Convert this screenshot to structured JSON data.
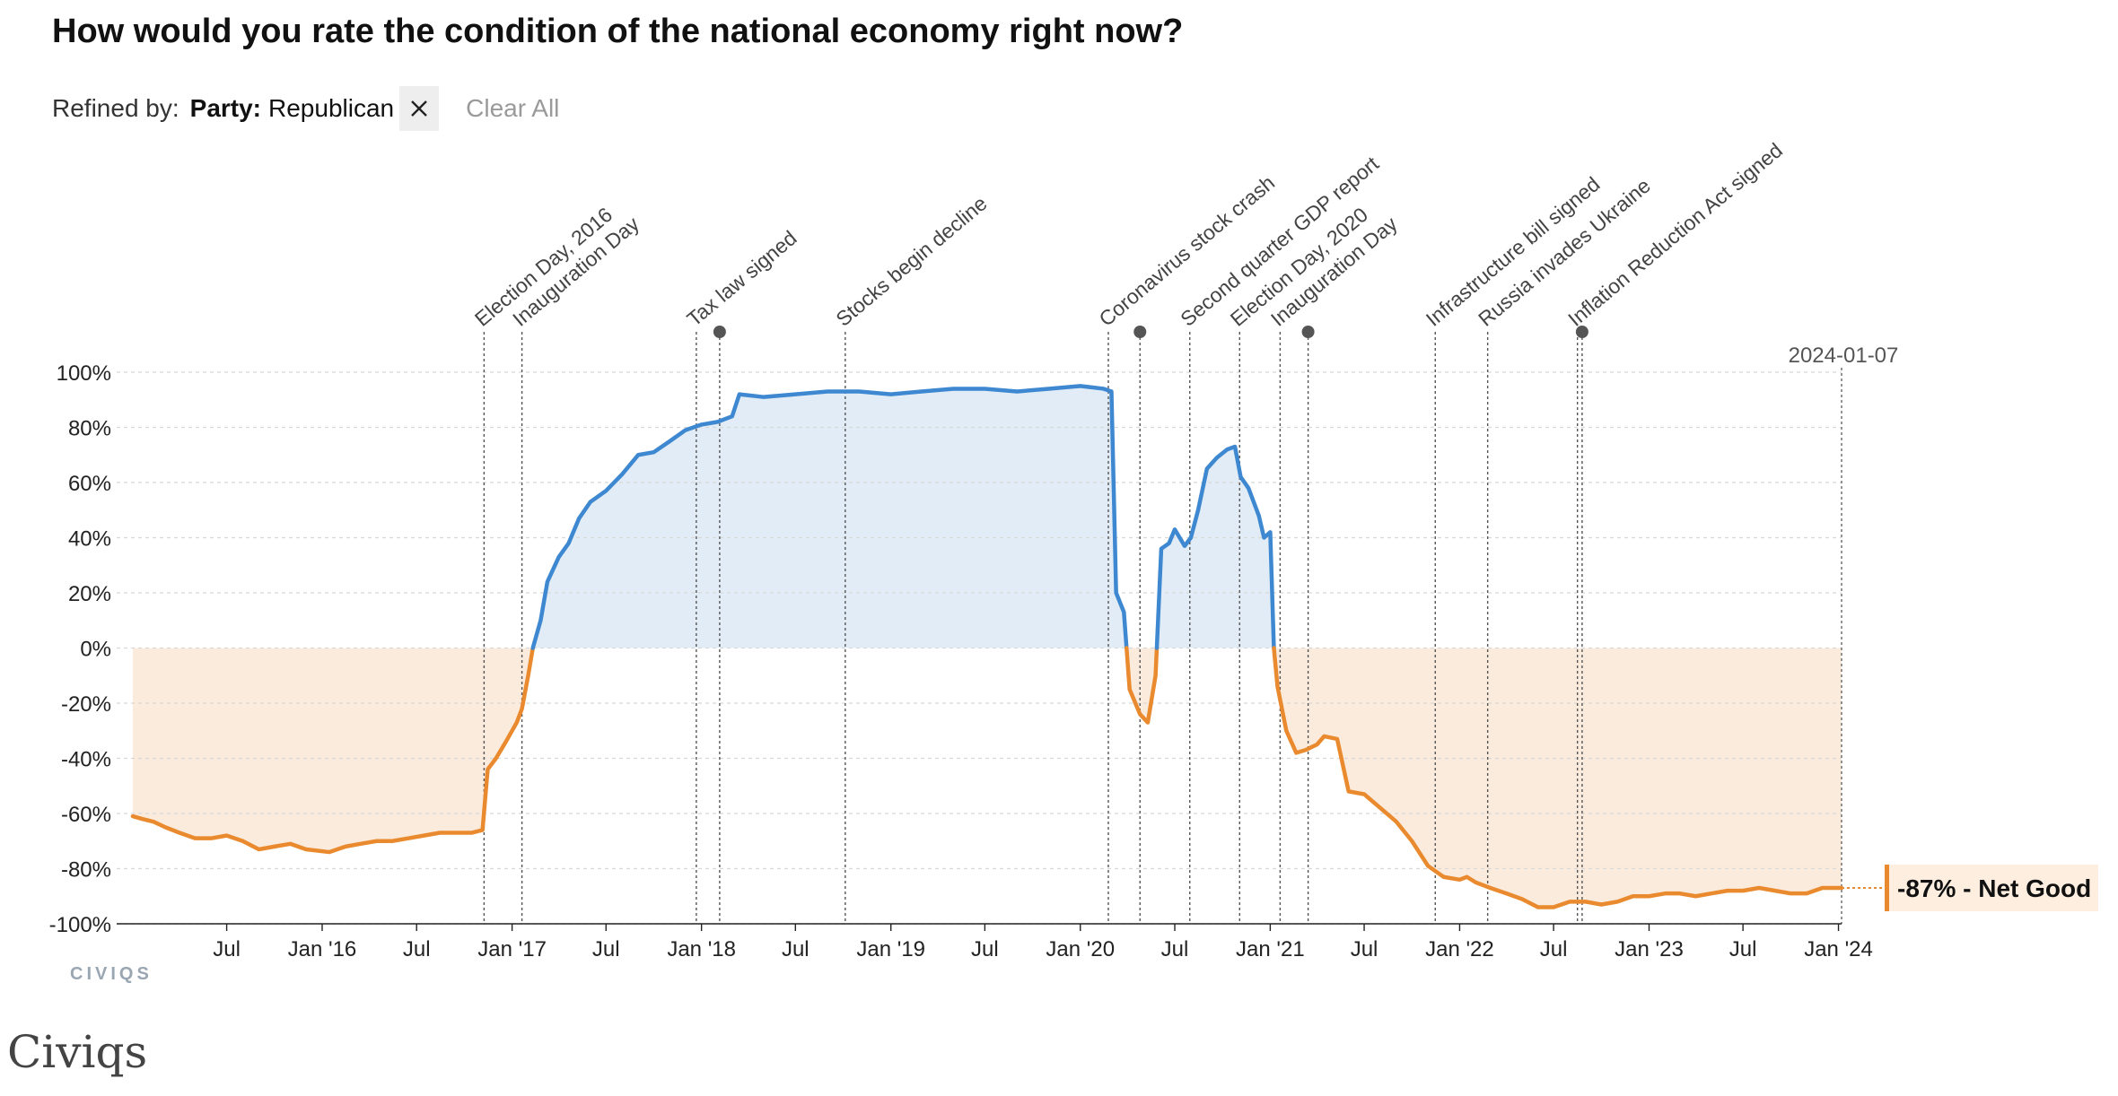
{
  "title": "How would you rate the condition of the national economy right now?",
  "refine": {
    "label": "Refined by:",
    "filter_key": "Party:",
    "filter_value": "Republican",
    "clear_all": "Clear All"
  },
  "watermark": "CIVIQS",
  "footer_source": "Civiqs",
  "colors": {
    "positive": "#3d88d0",
    "negative": "#ea8a2f",
    "positive_fill": "#e2ecf6",
    "negative_fill": "#fbebdd",
    "label_box": "#fdeee0"
  },
  "chart_data": {
    "type": "area",
    "title": "How would you rate the condition of the national economy right now?",
    "series": [
      {
        "name": "Net Good",
        "points": [
          [
            "2015-01-01",
            -61
          ],
          [
            "2015-01-20",
            -62
          ],
          [
            "2015-02-10",
            -63
          ],
          [
            "2015-03-05",
            -65
          ],
          [
            "2015-04-01",
            -67
          ],
          [
            "2015-05-01",
            -69
          ],
          [
            "2015-06-01",
            -69
          ],
          [
            "2015-07-01",
            -68
          ],
          [
            "2015-08-01",
            -70
          ],
          [
            "2015-09-01",
            -73
          ],
          [
            "2015-10-01",
            -72
          ],
          [
            "2015-11-01",
            -71
          ],
          [
            "2015-12-01",
            -73
          ],
          [
            "2016-01-15",
            -74
          ],
          [
            "2016-02-15",
            -72
          ],
          [
            "2016-03-15",
            -71
          ],
          [
            "2016-04-15",
            -70
          ],
          [
            "2016-05-15",
            -70
          ],
          [
            "2016-06-15",
            -69
          ],
          [
            "2016-07-15",
            -68
          ],
          [
            "2016-08-15",
            -67
          ],
          [
            "2016-09-15",
            -67
          ],
          [
            "2016-10-15",
            -67
          ],
          [
            "2016-11-05",
            -66
          ],
          [
            "2016-11-15",
            -44
          ],
          [
            "2016-12-01",
            -40
          ],
          [
            "2016-12-20",
            -34
          ],
          [
            "2017-01-10",
            -27
          ],
          [
            "2017-01-20",
            -22
          ],
          [
            "2017-02-01",
            -10
          ],
          [
            "2017-02-10",
            0
          ],
          [
            "2017-02-25",
            10
          ],
          [
            "2017-03-10",
            24
          ],
          [
            "2017-04-01",
            33
          ],
          [
            "2017-04-20",
            38
          ],
          [
            "2017-05-10",
            47
          ],
          [
            "2017-06-01",
            53
          ],
          [
            "2017-07-01",
            57
          ],
          [
            "2017-08-01",
            63
          ],
          [
            "2017-09-01",
            70
          ],
          [
            "2017-10-01",
            71
          ],
          [
            "2017-11-01",
            75
          ],
          [
            "2017-12-01",
            79
          ],
          [
            "2018-01-01",
            81
          ],
          [
            "2018-02-01",
            82
          ],
          [
            "2018-03-01",
            84
          ],
          [
            "2018-03-15",
            92
          ],
          [
            "2018-05-01",
            91
          ],
          [
            "2018-07-01",
            92
          ],
          [
            "2018-09-01",
            93
          ],
          [
            "2018-11-01",
            93
          ],
          [
            "2019-01-01",
            92
          ],
          [
            "2019-03-01",
            93
          ],
          [
            "2019-05-01",
            94
          ],
          [
            "2019-07-01",
            94
          ],
          [
            "2019-09-01",
            93
          ],
          [
            "2019-11-01",
            94
          ],
          [
            "2020-01-01",
            95
          ],
          [
            "2020-02-15",
            94
          ],
          [
            "2020-03-01",
            93
          ],
          [
            "2020-03-10",
            20
          ],
          [
            "2020-03-25",
            13
          ],
          [
            "2020-04-05",
            -15
          ],
          [
            "2020-04-25",
            -24
          ],
          [
            "2020-05-10",
            -27
          ],
          [
            "2020-05-25",
            -10
          ],
          [
            "2020-06-05",
            36
          ],
          [
            "2020-06-20",
            38
          ],
          [
            "2020-07-01",
            43
          ],
          [
            "2020-07-20",
            37
          ],
          [
            "2020-08-01",
            40
          ],
          [
            "2020-08-15",
            50
          ],
          [
            "2020-09-01",
            65
          ],
          [
            "2020-09-20",
            69
          ],
          [
            "2020-10-10",
            72
          ],
          [
            "2020-10-25",
            73
          ],
          [
            "2020-11-05",
            62
          ],
          [
            "2020-11-20",
            58
          ],
          [
            "2020-12-10",
            48
          ],
          [
            "2020-12-20",
            40
          ],
          [
            "2021-01-01",
            42
          ],
          [
            "2021-01-08",
            0
          ],
          [
            "2021-01-15",
            -14
          ],
          [
            "2021-02-01",
            -30
          ],
          [
            "2021-02-20",
            -38
          ],
          [
            "2021-03-10",
            -37
          ],
          [
            "2021-04-01",
            -35
          ],
          [
            "2021-04-15",
            -32
          ],
          [
            "2021-05-10",
            -33
          ],
          [
            "2021-06-01",
            -52
          ],
          [
            "2021-07-01",
            -53
          ],
          [
            "2021-08-01",
            -58
          ],
          [
            "2021-09-01",
            -63
          ],
          [
            "2021-10-01",
            -70
          ],
          [
            "2021-11-01",
            -79
          ],
          [
            "2021-12-01",
            -83
          ],
          [
            "2022-01-01",
            -84
          ],
          [
            "2022-01-15",
            -83
          ],
          [
            "2022-02-01",
            -85
          ],
          [
            "2022-03-01",
            -87
          ],
          [
            "2022-04-01",
            -89
          ],
          [
            "2022-05-01",
            -91
          ],
          [
            "2022-06-01",
            -94
          ],
          [
            "2022-07-01",
            -94
          ],
          [
            "2022-08-01",
            -92
          ],
          [
            "2022-09-01",
            -92
          ],
          [
            "2022-10-01",
            -93
          ],
          [
            "2022-11-01",
            -92
          ],
          [
            "2022-12-01",
            -90
          ],
          [
            "2023-01-01",
            -90
          ],
          [
            "2023-02-01",
            -89
          ],
          [
            "2023-03-01",
            -89
          ],
          [
            "2023-04-01",
            -90
          ],
          [
            "2023-05-01",
            -89
          ],
          [
            "2023-06-01",
            -88
          ],
          [
            "2023-07-01",
            -88
          ],
          [
            "2023-08-01",
            -87
          ],
          [
            "2023-09-01",
            -88
          ],
          [
            "2023-10-01",
            -89
          ],
          [
            "2023-11-01",
            -89
          ],
          [
            "2023-12-01",
            -87
          ],
          [
            "2024-01-07",
            -87
          ]
        ]
      }
    ],
    "ylim": [
      -100,
      100
    ],
    "yticks": [
      100,
      80,
      60,
      40,
      20,
      0,
      -20,
      -40,
      -60,
      -80,
      -100
    ],
    "ytick_labels": [
      "100%",
      "80%",
      "60%",
      "40%",
      "20%",
      "0%",
      "-20%",
      "-40%",
      "-60%",
      "-80%",
      "-100%"
    ],
    "xlim": [
      "2014-12-01",
      "2024-01-07"
    ],
    "xticks": [
      {
        "date": "2015-07-01",
        "label": "Jul"
      },
      {
        "date": "2016-01-01",
        "label": "Jan '16"
      },
      {
        "date": "2016-07-01",
        "label": "Jul"
      },
      {
        "date": "2017-01-01",
        "label": "Jan '17"
      },
      {
        "date": "2017-07-01",
        "label": "Jul"
      },
      {
        "date": "2018-01-01",
        "label": "Jan '18"
      },
      {
        "date": "2018-07-01",
        "label": "Jul"
      },
      {
        "date": "2019-01-01",
        "label": "Jan '19"
      },
      {
        "date": "2019-07-01",
        "label": "Jul"
      },
      {
        "date": "2020-01-01",
        "label": "Jan '20"
      },
      {
        "date": "2020-07-01",
        "label": "Jul"
      },
      {
        "date": "2021-01-01",
        "label": "Jan '21"
      },
      {
        "date": "2021-07-01",
        "label": "Jul"
      },
      {
        "date": "2022-01-01",
        "label": "Jan '22"
      },
      {
        "date": "2022-07-01",
        "label": "Jul"
      },
      {
        "date": "2023-01-01",
        "label": "Jan '23"
      },
      {
        "date": "2023-07-01",
        "label": "Jul"
      },
      {
        "date": "2024-01-01",
        "label": "Jan '24"
      }
    ],
    "grid": true,
    "annotations": [
      {
        "date": "2016-11-08",
        "label": "Election Day, 2016",
        "dot": false
      },
      {
        "date": "2017-01-20",
        "label": "Inauguration Day",
        "dot": false
      },
      {
        "date": "2017-12-22",
        "label": "Tax law signed",
        "dot": false
      },
      {
        "date": "2018-02-05",
        "label": "",
        "dot": true
      },
      {
        "date": "2018-10-05",
        "label": "Stocks begin decline",
        "dot": false
      },
      {
        "date": "2020-02-24",
        "label": "Coronavirus stock crash",
        "dot": false
      },
      {
        "date": "2020-04-25",
        "label": "",
        "dot": true
      },
      {
        "date": "2020-07-30",
        "label": "Second quarter GDP report",
        "dot": false
      },
      {
        "date": "2020-11-03",
        "label": "Election Day, 2020",
        "dot": false
      },
      {
        "date": "2021-01-20",
        "label": "Inauguration Day",
        "dot": false
      },
      {
        "date": "2021-03-15",
        "label": "",
        "dot": true
      },
      {
        "date": "2021-11-15",
        "label": "Infrastructure bill signed",
        "dot": false
      },
      {
        "date": "2022-02-24",
        "label": "Russia invades Ukraine",
        "dot": false
      },
      {
        "date": "2022-08-16",
        "label": "Inflation Reduction Act signed",
        "dot": false
      },
      {
        "date": "2022-08-25",
        "label": "",
        "dot": true
      }
    ],
    "current": {
      "date": "2024-01-07",
      "date_label": "2024-01-07",
      "value_label": "-87% - Net Good"
    }
  }
}
